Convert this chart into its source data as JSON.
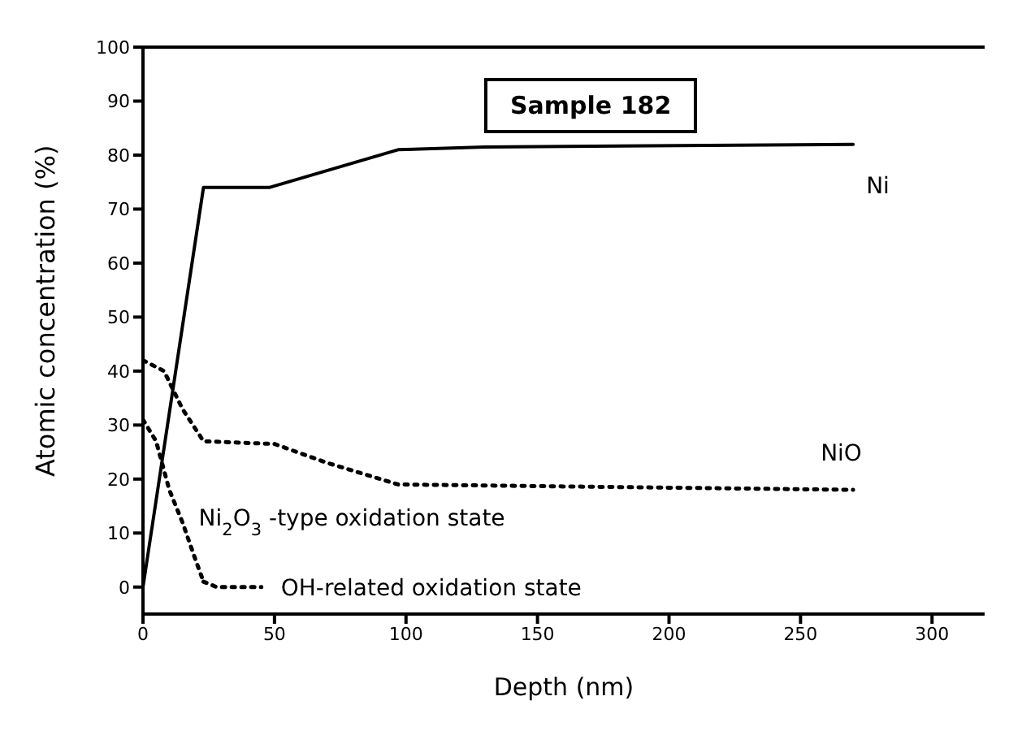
{
  "chart_data": {
    "type": "line",
    "xlabel": "Depth (nm)",
    "ylabel": "Atomic concentration (%)",
    "annotations": [
      "Sample 182"
    ],
    "xlim": [
      0,
      320
    ],
    "xticks": [
      0,
      50,
      100,
      150,
      200,
      250,
      300
    ],
    "ylim": [
      -5,
      100
    ],
    "yticks": [
      0,
      10,
      20,
      30,
      40,
      50,
      60,
      70,
      80,
      90,
      100
    ],
    "grid": false,
    "legend": false,
    "marker": "none",
    "series": [
      {
        "name": "Ni",
        "color": "#000000",
        "line_style": "solid",
        "x": [
          0,
          23,
          48,
          97,
          130,
          270
        ],
        "values": [
          0,
          74,
          74,
          81,
          81.5,
          82
        ]
      },
      {
        "name": "NiO",
        "color": "#000000",
        "line_style": "dotted",
        "x": [
          0,
          8,
          15,
          23,
          50,
          70,
          97,
          270
        ],
        "values": [
          42,
          40,
          33,
          27,
          26.5,
          23,
          19,
          18
        ]
      },
      {
        "name": "Ni$_{2}$O$_{3}$ -type oxidation state",
        "color": "#000000",
        "line_style": "dotted",
        "x": [
          0,
          5,
          10,
          15,
          20,
          23
        ],
        "values": [
          31,
          27,
          18,
          12,
          5,
          1
        ]
      },
      {
        "name": "OH-related oxidation state",
        "color": "#000000",
        "line_style": "dotted",
        "x": [
          23,
          28,
          45
        ],
        "values": [
          1,
          0,
          0
        ]
      }
    ]
  }
}
